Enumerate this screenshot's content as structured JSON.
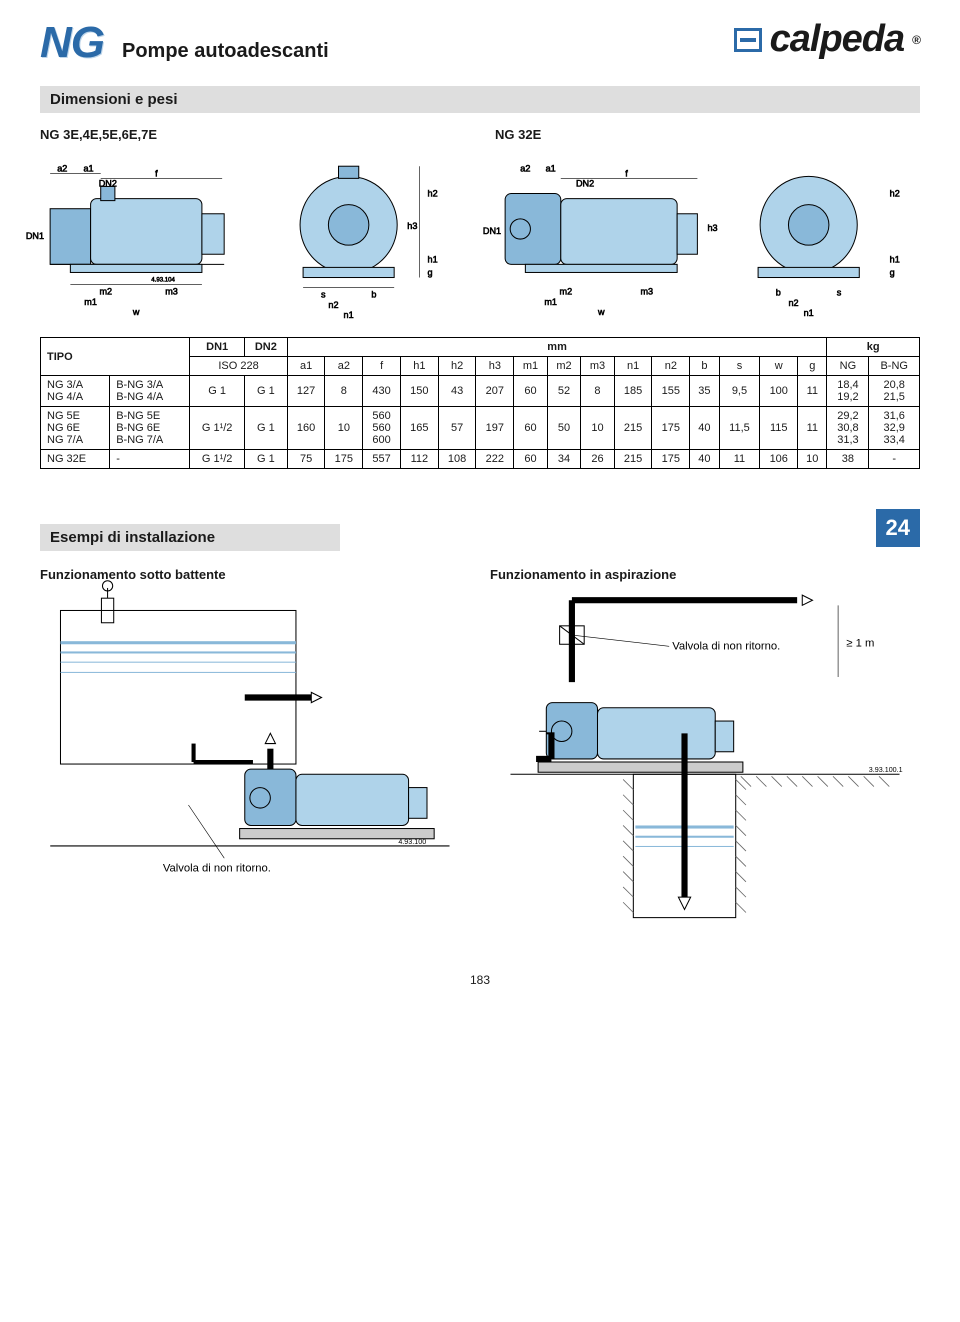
{
  "header": {
    "series": "NG",
    "title": "Pompe autoadescanti",
    "brand": "calpeda",
    "registered": "®"
  },
  "sections": {
    "dimensions_title": "Dimensioni e pesi",
    "install_title": "Esempi di installazione"
  },
  "drawings": {
    "left_label": "NG 3E,4E,5E,6E,7E",
    "right_label": "NG 32E",
    "dim_labels": {
      "a1": "a1",
      "a2": "a2",
      "f": "f",
      "DN1": "DN1",
      "DN2": "DN2",
      "h1": "h1",
      "h2": "h2",
      "h3": "h3",
      "g": "g",
      "m1": "m1",
      "m2": "m2",
      "m3": "m3",
      "n1": "n1",
      "n2": "n2",
      "b": "b",
      "s": "s",
      "w": "w",
      "code": "4.93.104"
    }
  },
  "table": {
    "tipo_header": "TIPO",
    "dn1_header": "DN1",
    "dn2_header": "DN2",
    "mm_header": "mm",
    "kg_header": "kg",
    "iso_header": "ISO 228",
    "columns": [
      "a1",
      "a2",
      "f",
      "h1",
      "h2",
      "h3",
      "m1",
      "m2",
      "m3",
      "n1",
      "n2",
      "b",
      "s",
      "w",
      "g",
      "NG",
      "B-NG"
    ],
    "rows": [
      {
        "tipo_ng": "NG 3/A\nNG 4/A",
        "tipo_bng": "B-NG 3/A\nB-NG 4/A",
        "dn1": "G 1",
        "dn2": "G 1",
        "a1": "127",
        "a2": "8",
        "f": "430",
        "h1": "150",
        "h2": "43",
        "h3": "207",
        "m1": "60",
        "m2": "52",
        "m3": "8",
        "n1": "185",
        "n2": "155",
        "b": "35",
        "s": "9,5",
        "w": "100",
        "g": "11",
        "kg_ng": "18,4\n19,2",
        "kg_bng": "20,8\n21,5"
      },
      {
        "tipo_ng": "NG 5E\nNG 6E\nNG 7/A",
        "tipo_bng": "B-NG 5E\nB-NG 6E\nB-NG 7/A",
        "dn1": "G 1¹/2",
        "dn2": "G 1",
        "a1": "160",
        "a2": "10",
        "f": "560\n560\n600",
        "h1": "165",
        "h2": "57",
        "h3": "197",
        "m1": "60",
        "m2": "50",
        "m3": "10",
        "n1": "215",
        "n2": "175",
        "b": "40",
        "s": "11,5",
        "w": "115",
        "g": "11",
        "kg_ng": "29,2\n30,8\n31,3",
        "kg_bng": "31,6\n32,9\n33,4"
      },
      {
        "tipo_ng": "NG 32E",
        "tipo_bng": "-",
        "dn1": "G 1¹/2",
        "dn2": "G 1",
        "a1": "75",
        "a2": "175",
        "f": "557",
        "h1": "112",
        "h2": "108",
        "h3": "222",
        "m1": "60",
        "m2": "34",
        "m3": "26",
        "n1": "215",
        "n2": "175",
        "b": "40",
        "s": "11",
        "w": "106",
        "g": "10",
        "kg_ng": "38",
        "kg_bng": "-"
      }
    ]
  },
  "install": {
    "badge": "24",
    "left_caption": "Funzionamento sotto battente",
    "right_caption": "Funzionamento in aspirazione",
    "valve_note": "Valvola di non ritorno.",
    "height_note": "≥ 1 m",
    "code_left": "4.93.100",
    "code_right": "3.93.100.1"
  },
  "page_number": "183",
  "colors": {
    "accent": "#2b6aa8",
    "pump_body": "#89b8d9",
    "pump_motor": "#afd3ea",
    "section_bg": "#dedede",
    "hatch": "#666666"
  }
}
